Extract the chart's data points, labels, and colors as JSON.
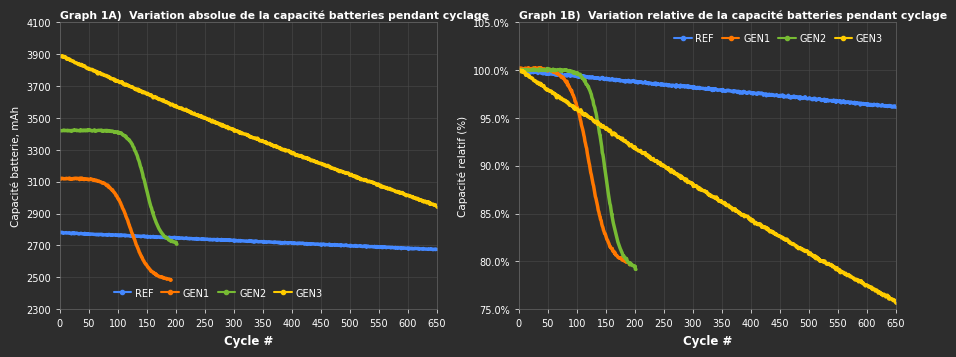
{
  "title_A": "Graph 1A)  Variation absolue de la capacité batteries pendant cyclage",
  "title_B": "Graph 1B)  Variation relative de la capacité batteries pendant cyclage",
  "xlabel": "Cycle #",
  "ylabel_A": "Capacité batterie, mAh",
  "ylabel_B": "Capacité relatif (%)",
  "bg_color": "#2d2d2d",
  "text_color": "#ffffff",
  "grid_color": "#4a4a4a",
  "colors": {
    "REF": "#4488ff",
    "GEN1": "#ff7700",
    "GEN2": "#77bb33",
    "GEN3": "#ffcc00"
  },
  "xlim": [
    0,
    650
  ],
  "xticks": [
    0,
    50,
    100,
    150,
    200,
    250,
    300,
    350,
    400,
    450,
    500,
    550,
    600,
    650
  ],
  "ylim_A": [
    2300,
    4100
  ],
  "yticks_A": [
    2300,
    2500,
    2700,
    2900,
    3100,
    3300,
    3500,
    3700,
    3900,
    4100
  ],
  "ylim_B": [
    75.0,
    105.0
  ],
  "yticks_B": [
    75.0,
    80.0,
    85.0,
    90.0,
    95.0,
    100.0,
    105.0
  ],
  "lw": 2.5
}
